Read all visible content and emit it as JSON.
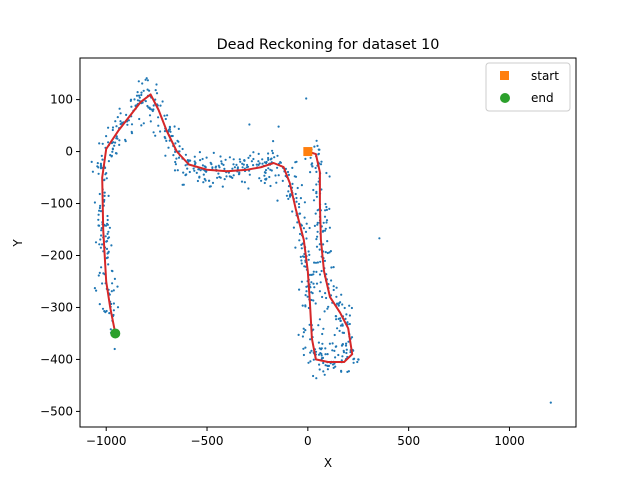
{
  "chart_data": {
    "type": "scatter",
    "title": "Dead Reckoning for dataset 10",
    "xlabel": "X",
    "ylabel": "Y",
    "xlim": [
      -1130,
      1330
    ],
    "ylim": [
      -530,
      180
    ],
    "xticks": [
      -1000,
      -500,
      0,
      500,
      1000
    ],
    "yticks": [
      -500,
      -400,
      -300,
      -200,
      -100,
      0,
      100
    ],
    "grid": false,
    "legend_position": "top-right",
    "colors": {
      "measurements": "#1f77b4",
      "trajectory": "#d62728",
      "start": "#ff7f0e",
      "end": "#2ca02c"
    },
    "series": [
      {
        "kind": "scatter",
        "role": "noisy-measurements",
        "marker": "dot",
        "noise_spread": 22,
        "outliers": [
          [
            1205,
            -483
          ],
          [
            355,
            -167
          ],
          [
            -1072,
            -20
          ],
          [
            -8,
            102
          ],
          [
            108,
            -48
          ],
          [
            95,
            -132
          ],
          [
            -290,
            52
          ],
          [
            -145,
            48
          ]
        ]
      },
      {
        "kind": "line",
        "role": "estimated-trajectory",
        "points": [
          [
            0,
            0
          ],
          [
            40,
            -5
          ],
          [
            60,
            -40
          ],
          [
            60,
            -100
          ],
          [
            65,
            -170
          ],
          [
            80,
            -230
          ],
          [
            110,
            -280
          ],
          [
            160,
            -310
          ],
          [
            200,
            -340
          ],
          [
            220,
            -390
          ],
          [
            180,
            -405
          ],
          [
            100,
            -405
          ],
          [
            40,
            -400
          ],
          [
            20,
            -360
          ],
          [
            10,
            -290
          ],
          [
            0,
            -230
          ],
          [
            -20,
            -170
          ],
          [
            -60,
            -110
          ],
          [
            -90,
            -60
          ],
          [
            -120,
            -30
          ],
          [
            -170,
            -22
          ],
          [
            -230,
            -30
          ],
          [
            -300,
            -35
          ],
          [
            -400,
            -38
          ],
          [
            -500,
            -35
          ],
          [
            -590,
            -25
          ],
          [
            -650,
            0
          ],
          [
            -700,
            40
          ],
          [
            -740,
            80
          ],
          [
            -780,
            110
          ],
          [
            -830,
            95
          ],
          [
            -880,
            70
          ],
          [
            -940,
            40
          ],
          [
            -1000,
            5
          ],
          [
            -1020,
            -50
          ],
          [
            -1015,
            -150
          ],
          [
            -1000,
            -250
          ],
          [
            -980,
            -300
          ],
          [
            -960,
            -340
          ]
        ]
      }
    ],
    "points": {
      "start": {
        "label": "start",
        "x": 0,
        "y": 0,
        "marker": "square"
      },
      "end": {
        "label": "end",
        "x": -955,
        "y": -350,
        "marker": "circle"
      }
    },
    "legend": [
      {
        "label": "start",
        "marker": "square"
      },
      {
        "label": "end",
        "marker": "circle"
      }
    ]
  }
}
